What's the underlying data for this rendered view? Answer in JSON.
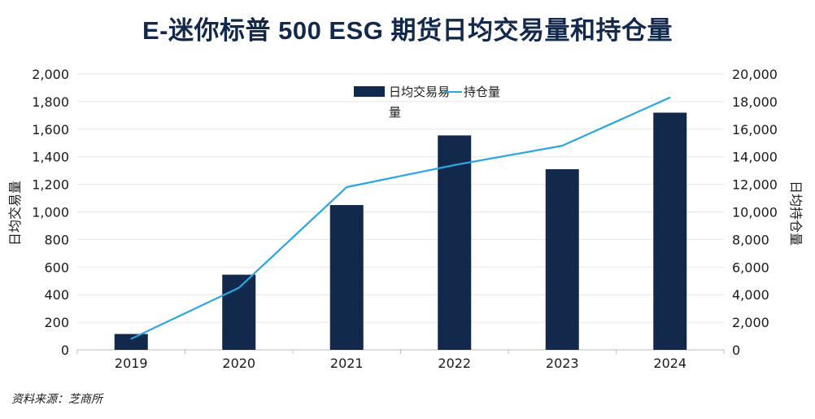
{
  "chart_data": {
    "type": "bar",
    "title": "E-迷你标普 500 ESG 期货日均交易量和持仓量",
    "categories": [
      "2019",
      "2020",
      "2021",
      "2022",
      "2023",
      "2024"
    ],
    "series": [
      {
        "name": "日均交易量",
        "axis": "left",
        "type": "bar",
        "color": "#13294b",
        "values": [
          115,
          545,
          1050,
          1555,
          1310,
          1720
        ]
      },
      {
        "name": "持仓量",
        "axis": "right",
        "type": "line",
        "color": "#2aa7e0",
        "values": [
          800,
          4500,
          11800,
          13400,
          14800,
          18300
        ]
      }
    ],
    "ylabel": "日均交易量",
    "y2label": "日均持仓量",
    "ylim": [
      0,
      2000
    ],
    "y2lim": [
      0,
      20000
    ],
    "yticks": [
      "0",
      "200",
      "400",
      "600",
      "800",
      "1,000",
      "1,200",
      "1,400",
      "1,600",
      "1,800",
      "2,000"
    ],
    "y2ticks": [
      "0",
      "2,000",
      "4,000",
      "6,000",
      "8,000",
      "10,000",
      "12,000",
      "14,000",
      "16,000",
      "18,000",
      "20,000"
    ],
    "legend": {
      "placement": "top-center",
      "bar_label_line1": "日均交易易",
      "bar_label_line2": "量",
      "line_label": "持仓量"
    },
    "grid": true
  },
  "source": "资料来源：芝商所"
}
